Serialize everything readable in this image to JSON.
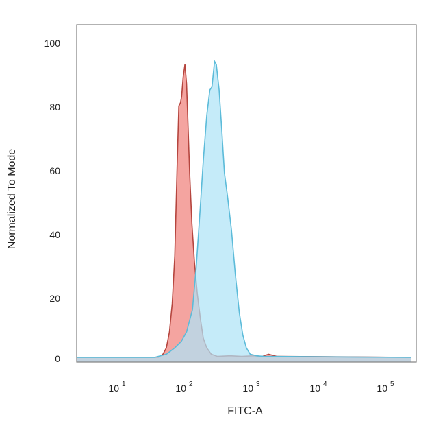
{
  "chart_data": {
    "type": "area",
    "xlabel": "FITC-A",
    "ylabel": "Normalized To Mode",
    "x_scale": "log",
    "xlim": [
      20,
      200000
    ],
    "ylim": [
      0,
      105
    ],
    "x_ticks": [
      {
        "base": "10",
        "exp": "1",
        "value": 10
      },
      {
        "base": "10",
        "exp": "2",
        "value": 100
      },
      {
        "base": "10",
        "exp": "3",
        "value": 1000
      },
      {
        "base": "10",
        "exp": "4",
        "value": 10000
      },
      {
        "base": "10",
        "exp": "5",
        "value": 100000
      }
    ],
    "y_ticks": [
      "0",
      "20",
      "40",
      "60",
      "80",
      "100"
    ],
    "grid": false,
    "legend": "none",
    "series": [
      {
        "fill": "#f4a4a0",
        "stroke": "#b5453e",
        "points": [
          [
            2,
            0
          ],
          [
            34,
            0
          ],
          [
            40,
            1
          ],
          [
            45,
            3
          ],
          [
            50,
            8
          ],
          [
            55,
            17
          ],
          [
            60,
            32
          ],
          [
            65,
            60
          ],
          [
            69,
            79
          ],
          [
            73,
            80
          ],
          [
            76,
            82
          ],
          [
            80,
            88
          ],
          [
            85,
            92
          ],
          [
            90,
            86
          ],
          [
            95,
            72
          ],
          [
            100,
            58
          ],
          [
            108,
            42
          ],
          [
            118,
            30
          ],
          [
            130,
            20
          ],
          [
            145,
            12
          ],
          [
            160,
            6
          ],
          [
            180,
            3
          ],
          [
            210,
            1
          ],
          [
            260,
            0.3
          ],
          [
            400,
            0.5
          ],
          [
            600,
            0.3
          ],
          [
            900,
            0.5
          ],
          [
            1200,
            0.3
          ],
          [
            1500,
            1
          ],
          [
            2000,
            0.3
          ],
          [
            200000,
            0
          ]
        ]
      },
      {
        "fill": "#aee3f6",
        "stroke": "#5cbbd9",
        "points": [
          [
            2,
            0
          ],
          [
            30,
            0
          ],
          [
            45,
            1
          ],
          [
            60,
            3
          ],
          [
            75,
            5
          ],
          [
            90,
            8
          ],
          [
            110,
            15
          ],
          [
            125,
            28
          ],
          [
            145,
            48
          ],
          [
            160,
            62
          ],
          [
            180,
            76
          ],
          [
            200,
            84
          ],
          [
            215,
            85
          ],
          [
            235,
            93
          ],
          [
            250,
            92
          ],
          [
            275,
            84
          ],
          [
            300,
            72
          ],
          [
            330,
            58
          ],
          [
            370,
            50
          ],
          [
            420,
            40
          ],
          [
            480,
            26
          ],
          [
            550,
            14
          ],
          [
            620,
            7
          ],
          [
            700,
            3
          ],
          [
            800,
            1
          ],
          [
            1000,
            0.5
          ],
          [
            1300,
            0.3
          ],
          [
            200000,
            0
          ]
        ]
      }
    ]
  }
}
